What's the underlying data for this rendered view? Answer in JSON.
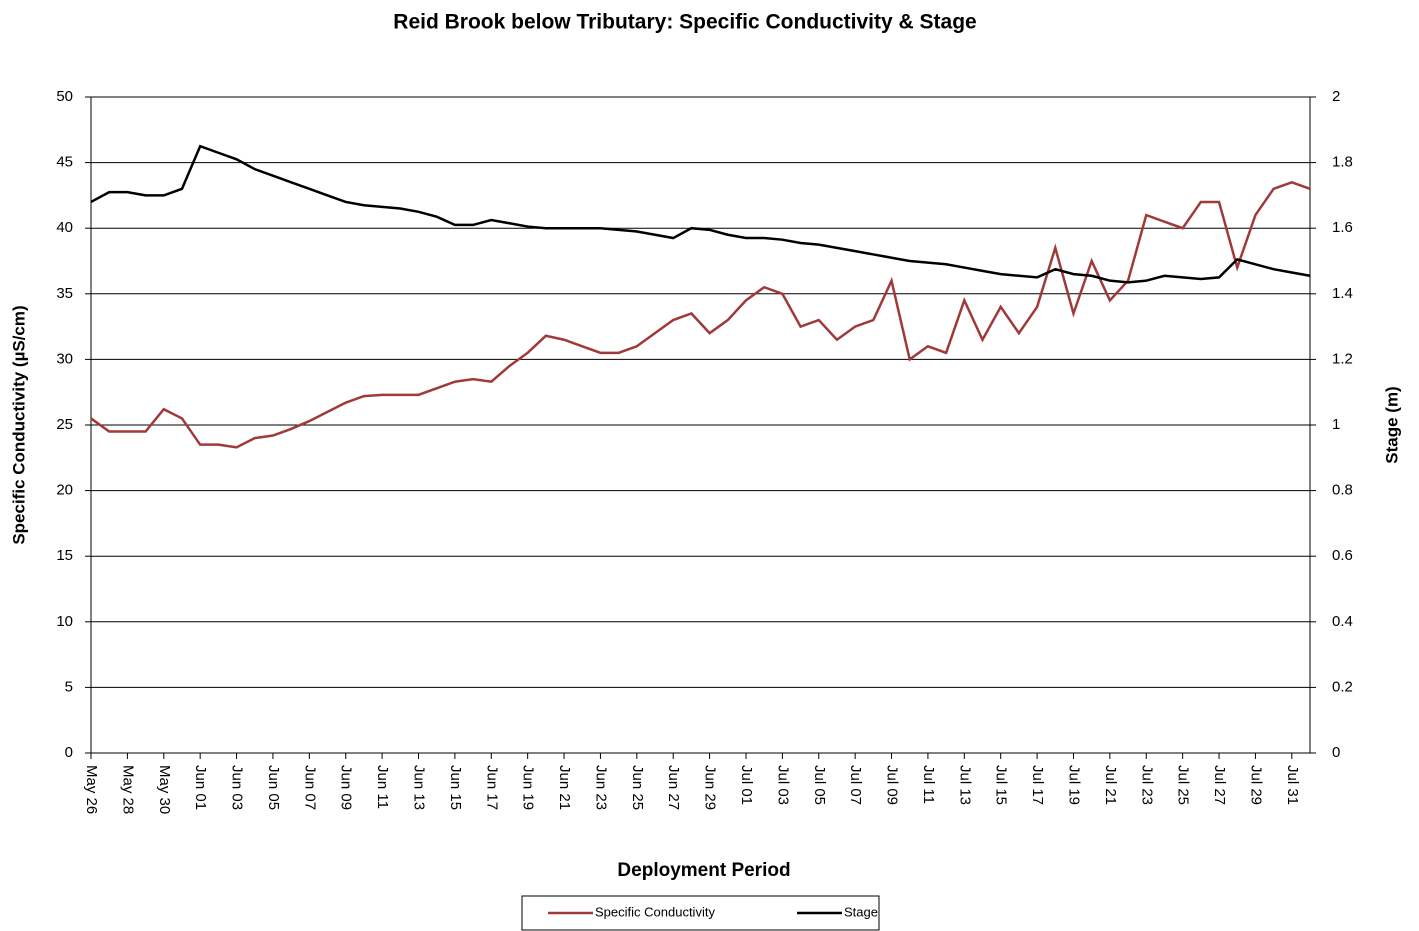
{
  "chart_data": {
    "type": "line",
    "title": "Reid Brook below Tributary: Specific Conductivity & Stage",
    "xlabel": "Deployment Period",
    "ylabel": "Specific Conductivity  (µS/cm)",
    "y2label": "Stage (m)",
    "x": [
      "May 26",
      "May 27",
      "May 28",
      "May 29",
      "May 30",
      "May 31",
      "Jun 01",
      "Jun 02",
      "Jun 03",
      "Jun 04",
      "Jun 05",
      "Jun 06",
      "Jun 07",
      "Jun 08",
      "Jun 09",
      "Jun 10",
      "Jun 11",
      "Jun 12",
      "Jun 13",
      "Jun 14",
      "Jun 15",
      "Jun 16",
      "Jun 17",
      "Jun 18",
      "Jun 19",
      "Jun 20",
      "Jun 21",
      "Jun 22",
      "Jun 23",
      "Jun 24",
      "Jun 25",
      "Jun 26",
      "Jun 27",
      "Jun 28",
      "Jun 29",
      "Jun 30",
      "Jul 01",
      "Jul 02",
      "Jul 03",
      "Jul 04",
      "Jul 05",
      "Jul 06",
      "Jul 07",
      "Jul 08",
      "Jul 09",
      "Jul 10",
      "Jul 11",
      "Jul 12",
      "Jul 13",
      "Jul 14",
      "Jul 15",
      "Jul 16",
      "Jul 17",
      "Jul 18",
      "Jul 19",
      "Jul 20",
      "Jul 21",
      "Jul 22",
      "Jul 23",
      "Jul 24",
      "Jul 25",
      "Jul 26",
      "Jul 27",
      "Jul 28",
      "Jul 29",
      "Jul 30",
      "Jul 31",
      "Aug 01"
    ],
    "xticks": [
      "May 26",
      "May 28",
      "May 30",
      "Jun 01",
      "Jun 03",
      "Jun 05",
      "Jun 07",
      "Jun 09",
      "Jun 11",
      "Jun 13",
      "Jun 15",
      "Jun 17",
      "Jun 19",
      "Jun 21",
      "Jun 23",
      "Jun 25",
      "Jun 27",
      "Jun 29",
      "Jul 01",
      "Jul 03",
      "Jul 05",
      "Jul 07",
      "Jul 09",
      "Jul 11",
      "Jul 13",
      "Jul 15",
      "Jul 17",
      "Jul 19",
      "Jul 21",
      "Jul 23",
      "Jul 25",
      "Jul 27",
      "Jul 29",
      "Jul 31"
    ],
    "ylim": [
      0,
      50
    ],
    "yticks": [
      0,
      5,
      10,
      15,
      20,
      25,
      30,
      35,
      40,
      45,
      50
    ],
    "y2lim": [
      0,
      2
    ],
    "y2ticks": [
      0,
      0.2,
      0.4,
      0.6,
      0.8,
      1,
      1.2,
      1.4,
      1.6,
      1.8,
      2
    ],
    "grid": true,
    "legend": "bottom",
    "series": [
      {
        "name": "Specific Conductivity",
        "color": "#a0393a",
        "values": [
          25.5,
          24.5,
          24.5,
          24.5,
          26.2,
          25.5,
          23.5,
          23.5,
          23.3,
          24,
          24.2,
          24.7,
          25.3,
          26,
          26.7,
          27.2,
          27.3,
          27.3,
          27.3,
          27.8,
          28.3,
          28.5,
          28.3,
          29.5,
          30.5,
          31.8,
          31.5,
          31,
          30.5,
          30.5,
          31,
          32,
          33,
          33.5,
          32,
          33,
          34.5,
          35.5,
          35,
          32.5,
          33,
          31.5,
          32.5,
          33,
          36,
          30,
          31,
          30.5,
          34.5,
          31.5,
          34,
          32,
          34,
          38.5,
          33.5,
          37.5,
          34.5,
          36,
          41,
          40.5,
          40,
          42,
          42,
          37,
          41,
          43,
          43.5,
          43
        ]
      },
      {
        "name": "Stage",
        "color": "#000000",
        "axis": "y2",
        "values": [
          1.68,
          1.71,
          1.71,
          1.7,
          1.7,
          1.72,
          1.85,
          1.83,
          1.81,
          1.78,
          1.76,
          1.74,
          1.72,
          1.7,
          1.68,
          1.67,
          1.665,
          1.66,
          1.65,
          1.635,
          1.61,
          1.61,
          1.625,
          1.615,
          1.605,
          1.6,
          1.6,
          1.6,
          1.6,
          1.595,
          1.59,
          1.58,
          1.57,
          1.6,
          1.595,
          1.58,
          1.57,
          1.57,
          1.565,
          1.555,
          1.55,
          1.54,
          1.53,
          1.52,
          1.51,
          1.5,
          1.495,
          1.49,
          1.48,
          1.47,
          1.46,
          1.455,
          1.45,
          1.475,
          1.46,
          1.455,
          1.44,
          1.435,
          1.44,
          1.455,
          1.45,
          1.445,
          1.45,
          1.505,
          1.49,
          1.475,
          1.465,
          1.455
        ]
      }
    ]
  }
}
